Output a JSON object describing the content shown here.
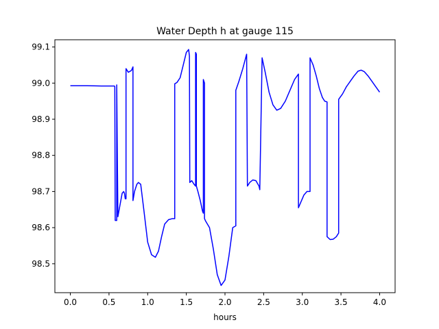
{
  "chart_data": {
    "type": "line",
    "title": "Water Depth h at gauge 115",
    "xlabel": "hours",
    "ylabel": "",
    "xlim": [
      -0.2,
      4.2
    ],
    "ylim": [
      98.42,
      99.12
    ],
    "xticks": [
      0.0,
      0.5,
      1.0,
      1.5,
      2.0,
      2.5,
      3.0,
      3.5,
      4.0
    ],
    "xtick_labels": [
      "0.0",
      "0.5",
      "1.0",
      "1.5",
      "2.0",
      "2.5",
      "3.0",
      "3.5",
      "4.0"
    ],
    "yticks": [
      98.5,
      98.6,
      98.7,
      98.8,
      98.9,
      99.0,
      99.1
    ],
    "ytick_labels": [
      "98.5",
      "98.6",
      "98.7",
      "98.8",
      "98.9",
      "99.0",
      "99.1"
    ],
    "grid": false,
    "series": [
      {
        "color": "#0000ff",
        "x": [
          0.0,
          0.2,
          0.4,
          0.57,
          0.575,
          0.58,
          0.6,
          0.6,
          0.615,
          0.64,
          0.67,
          0.69,
          0.7,
          0.71,
          0.72,
          0.72,
          0.75,
          0.79,
          0.81,
          0.81,
          0.83,
          0.86,
          0.88,
          0.91,
          0.95,
          1.0,
          1.05,
          1.1,
          1.14,
          1.18,
          1.22,
          1.27,
          1.32,
          1.35,
          1.35,
          1.38,
          1.42,
          1.46,
          1.5,
          1.53,
          1.54,
          1.545,
          1.57,
          1.6,
          1.62,
          1.62,
          1.63,
          1.63,
          1.65,
          1.68,
          1.71,
          1.72,
          1.72,
          1.735,
          1.735,
          1.75,
          1.8,
          1.85,
          1.9,
          1.95,
          2.0,
          2.05,
          2.1,
          2.14,
          2.14,
          2.18,
          2.23,
          2.28,
          2.29,
          2.32,
          2.36,
          2.4,
          2.44,
          2.45,
          2.48,
          2.52,
          2.57,
          2.62,
          2.67,
          2.72,
          2.78,
          2.85,
          2.9,
          2.95,
          2.95,
          2.98,
          3.02,
          3.06,
          3.1,
          3.1,
          3.14,
          3.18,
          3.22,
          3.26,
          3.29,
          3.32,
          3.32,
          3.36,
          3.4,
          3.44,
          3.47,
          3.47,
          3.52,
          3.57,
          3.62,
          3.67,
          3.72,
          3.76,
          3.8,
          3.85,
          3.9,
          3.95,
          4.0
        ],
        "y": [
          98.993,
          98.993,
          98.992,
          98.992,
          98.99,
          98.62,
          98.62,
          98.995,
          98.63,
          98.66,
          98.695,
          98.7,
          98.695,
          98.68,
          98.68,
          99.04,
          99.03,
          99.035,
          99.045,
          98.675,
          98.7,
          98.72,
          98.725,
          98.72,
          98.65,
          98.56,
          98.525,
          98.518,
          98.535,
          98.575,
          98.61,
          98.622,
          98.625,
          98.625,
          98.998,
          99.002,
          99.015,
          99.05,
          99.085,
          99.093,
          99.075,
          98.725,
          98.73,
          98.72,
          98.715,
          99.085,
          99.08,
          98.715,
          98.7,
          98.675,
          98.645,
          98.64,
          99.01,
          99.0,
          98.625,
          98.618,
          98.6,
          98.54,
          98.47,
          98.44,
          98.455,
          98.52,
          98.6,
          98.605,
          98.98,
          99.005,
          99.04,
          99.08,
          98.715,
          98.725,
          98.732,
          98.73,
          98.715,
          98.705,
          99.07,
          99.03,
          98.975,
          98.94,
          98.925,
          98.93,
          98.95,
          98.985,
          99.01,
          99.025,
          98.655,
          98.67,
          98.69,
          98.7,
          98.7,
          99.07,
          99.05,
          99.02,
          98.985,
          98.96,
          98.95,
          98.948,
          98.575,
          98.567,
          98.568,
          98.575,
          98.585,
          98.955,
          98.97,
          98.99,
          99.005,
          99.02,
          99.033,
          99.036,
          99.032,
          99.02,
          99.005,
          98.99,
          98.975
        ]
      }
    ]
  }
}
